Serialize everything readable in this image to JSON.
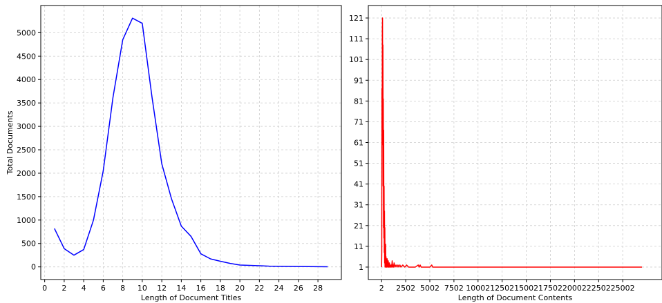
{
  "chart_data": [
    {
      "type": "line",
      "title": "",
      "xlabel": "Length of Document Titles",
      "ylabel": "Total Documents",
      "xlim": [
        -0.4,
        30.4
      ],
      "ylim": [
        -270,
        5580
      ],
      "xticks": [
        0,
        2,
        4,
        6,
        8,
        10,
        12,
        14,
        16,
        18,
        20,
        22,
        24,
        26,
        28
      ],
      "yticks": [
        0,
        500,
        1000,
        1500,
        2000,
        2500,
        3000,
        3500,
        4000,
        4500,
        5000
      ],
      "grid": true,
      "color": "#0000ff",
      "series": [
        {
          "x": [
            1,
            2,
            3,
            4,
            5,
            6,
            7,
            8,
            9,
            10,
            11,
            12,
            13,
            14,
            15,
            16,
            17,
            18,
            19,
            20,
            21,
            22,
            23,
            24,
            25,
            26,
            27,
            28,
            29
          ],
          "values": [
            820,
            390,
            250,
            370,
            1000,
            2050,
            3620,
            4850,
            5310,
            5200,
            3620,
            2200,
            1450,
            870,
            650,
            280,
            170,
            120,
            75,
            40,
            32,
            25,
            15,
            12,
            10,
            8,
            6,
            4,
            3
          ]
        }
      ]
    },
    {
      "type": "line",
      "title": "",
      "xlabel": "Length of Document Contents",
      "ylabel": "",
      "xlim": [
        -1374,
        29074
      ],
      "ylim": [
        -5,
        127
      ],
      "xticks": [
        2,
        2502,
        5002,
        7502,
        10002,
        12502,
        15002,
        17502,
        20002,
        22502,
        25002
      ],
      "yticks": [
        1,
        11,
        21,
        31,
        41,
        51,
        61,
        71,
        81,
        91,
        101,
        111,
        121
      ],
      "grid": true,
      "color": "#ff0000",
      "series": [
        {
          "x": [
            2,
            20,
            40,
            60,
            80,
            100,
            120,
            140,
            160,
            180,
            200,
            220,
            240,
            260,
            280,
            300,
            320,
            340,
            360,
            380,
            400,
            420,
            440,
            460,
            480,
            500,
            520,
            540,
            560,
            580,
            600,
            630,
            660,
            690,
            720,
            750,
            780,
            820,
            860,
            900,
            950,
            1000,
            1050,
            1100,
            1150,
            1200,
            1250,
            1300,
            1400,
            1500,
            1600,
            1700,
            1800,
            1900,
            2000,
            2200,
            2400,
            2600,
            2800,
            3000,
            3500,
            3800,
            3900,
            4000,
            4100,
            4200,
            5000,
            5200,
            5300,
            5500,
            7000,
            10000,
            15000,
            20000,
            25000,
            27000
          ],
          "values": [
            1,
            8,
            87,
            60,
            115,
            121,
            60,
            108,
            40,
            82,
            20,
            67,
            15,
            40,
            8,
            28,
            3,
            20,
            1,
            12,
            2,
            12,
            1,
            6,
            2,
            5,
            1,
            3,
            1,
            5,
            2,
            4,
            1,
            4,
            1,
            3,
            1,
            3,
            1,
            2,
            1,
            2,
            1,
            4,
            1,
            2,
            1,
            3,
            1,
            2,
            1,
            2,
            1,
            2,
            1,
            2,
            1,
            2,
            1,
            1,
            1,
            2,
            1,
            2,
            1,
            1,
            1,
            2,
            1,
            1,
            1,
            1,
            1,
            1,
            1,
            1
          ]
        }
      ]
    }
  ]
}
